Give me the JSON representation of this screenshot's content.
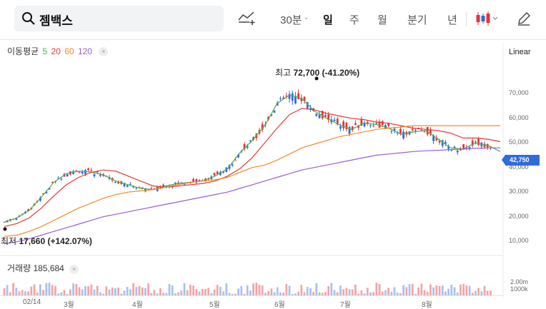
{
  "search": {
    "query": "젬백스"
  },
  "toolbar": {
    "period_30min": "30분",
    "period_day": "일",
    "period_week": "주",
    "period_month": "월",
    "period_quarter": "분기",
    "period_year": "년",
    "active": "일"
  },
  "ma_legend": {
    "title": "이동평균",
    "p5": "5",
    "p20": "20",
    "p60": "60",
    "p120": "120",
    "close": "×"
  },
  "scale": {
    "label": "Linear"
  },
  "annotations": {
    "high_prefix": "최고",
    "high_value": "72,700",
    "high_change": "(-41.20%)",
    "low_prefix": "최저",
    "low_value": "17,660",
    "low_change": "(+142.07%)"
  },
  "current_price": "42,750",
  "volume": {
    "title": "거래량",
    "value": "185,684",
    "close": "×",
    "axis_top": "2.00m",
    "axis_bottom": "1000k"
  },
  "colors": {
    "up": "#e0353a",
    "down": "#2f6bdb",
    "ma5": "#4caf50",
    "ma20": "#e53935",
    "ma60": "#f08a24",
    "ma120": "#9c5bd3",
    "accent": "#2f6bdb"
  },
  "chart_data": {
    "type": "line",
    "y_axis": [
      "10,000",
      "20,000",
      "30,000",
      "40,000",
      "50,000",
      "60,000",
      "70,000"
    ],
    "ylim": [
      8000,
      82000
    ],
    "x_ticks": [
      "02/14",
      "3월",
      "4월",
      "5월",
      "6월",
      "7월",
      "8월"
    ],
    "series": [
      {
        "name": "5",
        "values": [
          17800,
          19500,
          22500,
          28000,
          34000,
          37500,
          38500,
          38200,
          37000,
          34500,
          33000,
          31500,
          31000,
          32500,
          33500,
          34000,
          34500,
          36500,
          39500,
          46000,
          51000,
          57000,
          66000,
          69500,
          68000,
          63000,
          60000,
          57500,
          55500,
          58000,
          57500,
          56000,
          53500,
          54500,
          55000,
          51500,
          48000,
          47500,
          50000,
          49000,
          46500
        ]
      },
      {
        "name": "20",
        "values": [
          16000,
          17200,
          19500,
          23500,
          28500,
          33000,
          36000,
          38000,
          39000,
          38500,
          36500,
          34500,
          32500,
          32000,
          32500,
          33000,
          33500,
          34500,
          36500,
          39500,
          44000,
          50000,
          56000,
          61500,
          64000,
          63500,
          62000,
          61000,
          60000,
          59500,
          58500,
          58000,
          57000,
          56000,
          55500,
          55000,
          54000,
          52000,
          52000,
          51500,
          50500
        ]
      },
      {
        "name": "60",
        "values": [
          12000,
          12500,
          14000,
          16000,
          18500,
          21000,
          23500,
          25500,
          27500,
          29000,
          30000,
          30500,
          31000,
          32000,
          33000,
          34000,
          34500,
          35000,
          36000,
          38000,
          40000,
          41000,
          43000,
          45500,
          48000,
          49500,
          51000,
          52500,
          53500,
          54500,
          55500,
          56000,
          56500,
          57000,
          57000,
          57000,
          57000,
          57000,
          57000,
          57000,
          57000
        ]
      },
      {
        "name": "120",
        "values": [
          9000,
          9800,
          11000,
          12500,
          14000,
          15500,
          17000,
          18500,
          20000,
          21000,
          22000,
          23000,
          24000,
          25000,
          26000,
          27000,
          28000,
          29000,
          30000,
          31500,
          33000,
          34500,
          36000,
          37500,
          39000,
          40000,
          41000,
          42000,
          43000,
          44000,
          45000,
          45500,
          46000,
          46500,
          46800,
          47000,
          47300,
          47500,
          47800,
          48000,
          48000
        ]
      }
    ]
  }
}
